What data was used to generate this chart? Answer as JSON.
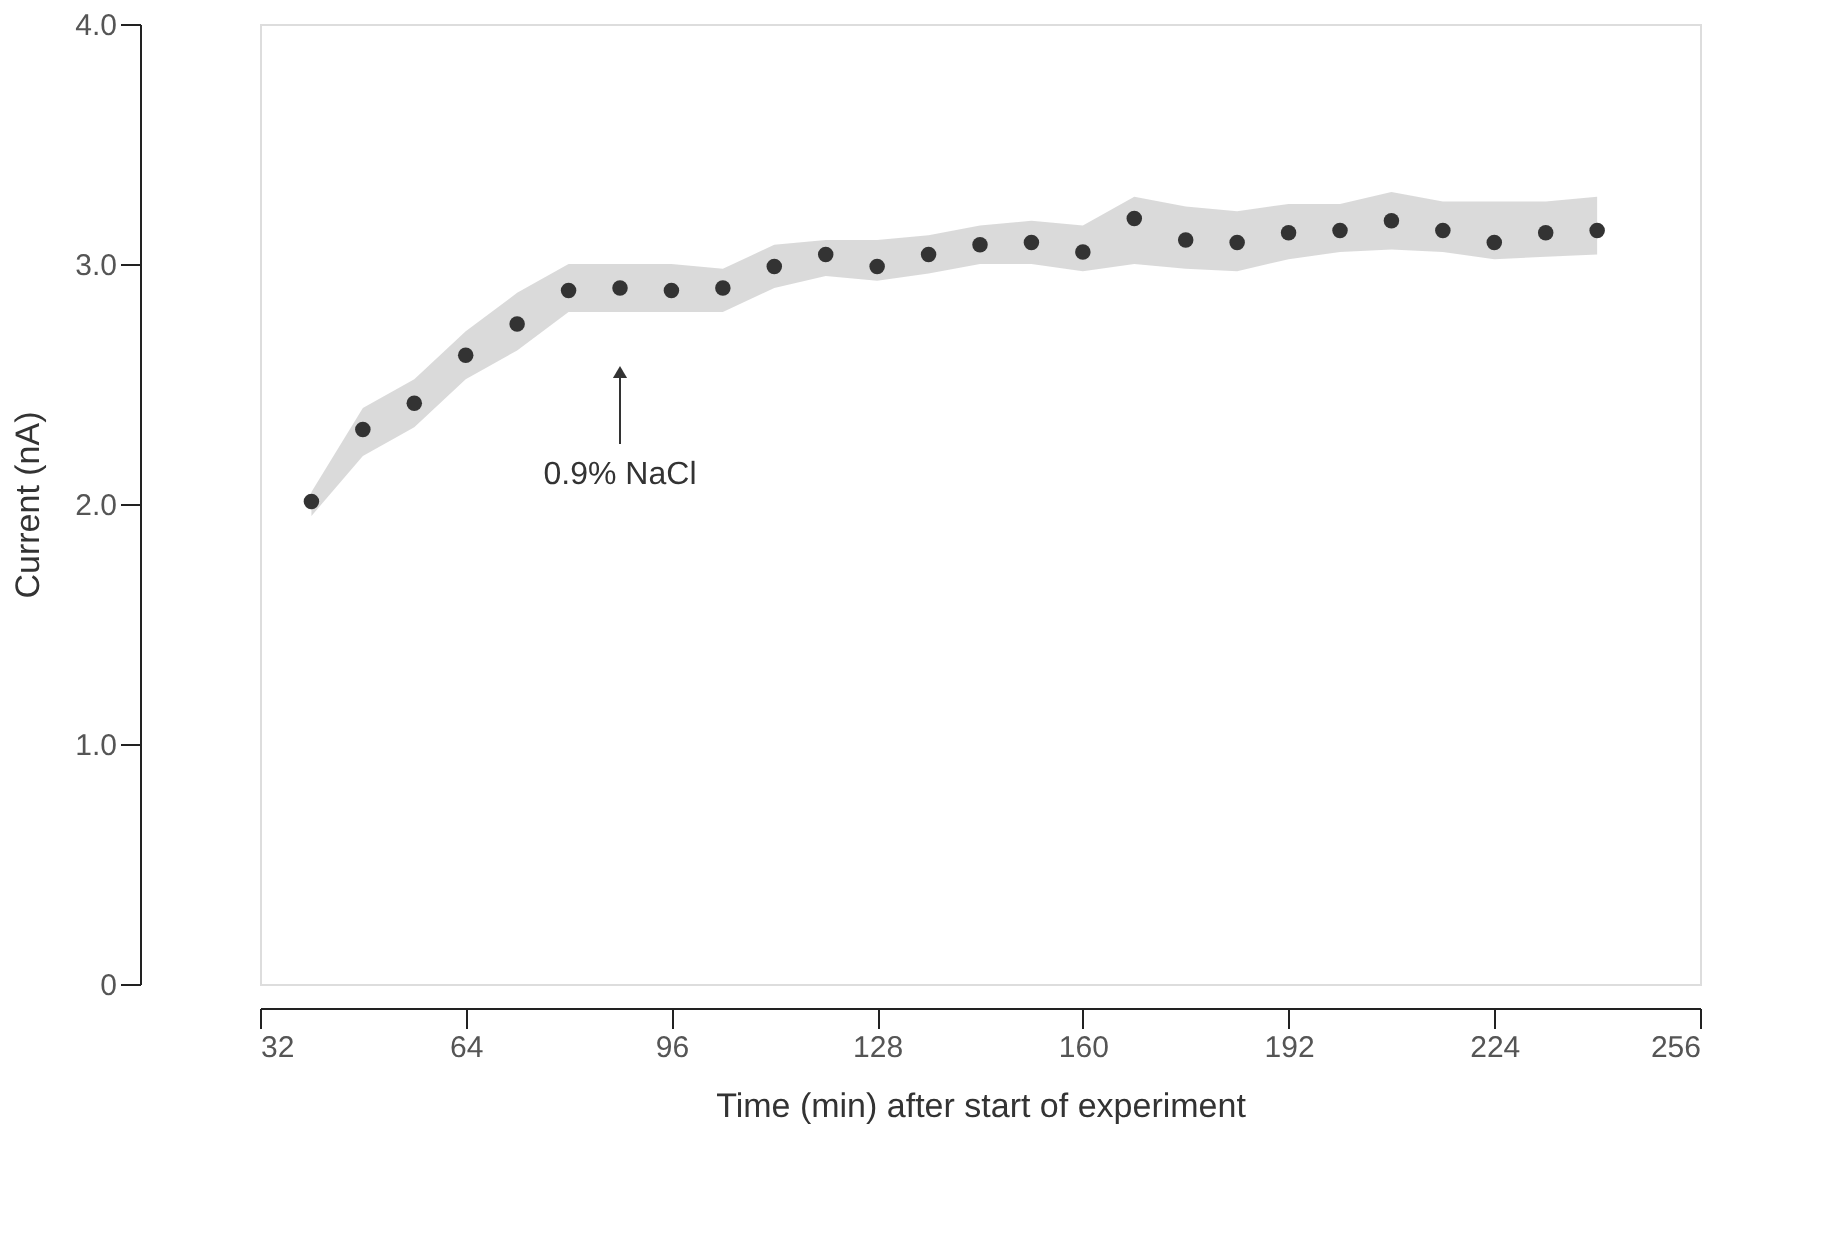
{
  "chart_data": {
    "type": "scatter",
    "xlabel": "Time (min) after start of experiment",
    "ylabel": "Current (nA)",
    "x": [
      40,
      48,
      56,
      64,
      72,
      80,
      88,
      96,
      104,
      112,
      120,
      128,
      136,
      144,
      152,
      160,
      168,
      176,
      184,
      192,
      200,
      208,
      216,
      224,
      232,
      240
    ],
    "series": [
      {
        "color": "#333333",
        "values": [
          2.01,
          2.31,
          2.42,
          2.62,
          2.75,
          2.89,
          2.9,
          2.89,
          2.9,
          2.99,
          3.04,
          2.99,
          3.04,
          3.08,
          3.09,
          3.05,
          3.19,
          3.1,
          3.09,
          3.13,
          3.14,
          3.18,
          3.14,
          3.09,
          3.13,
          3.14
        ],
        "lower": [
          1.95,
          2.2,
          2.32,
          2.52,
          2.64,
          2.8,
          2.8,
          2.8,
          2.8,
          2.9,
          2.95,
          2.93,
          2.96,
          3.0,
          3.0,
          2.97,
          3.0,
          2.98,
          2.97,
          3.02,
          3.05,
          3.06,
          3.05,
          3.02,
          3.03,
          3.04
        ],
        "upper": [
          2.05,
          2.4,
          2.52,
          2.72,
          2.88,
          3.0,
          3.0,
          3.0,
          2.98,
          3.08,
          3.1,
          3.1,
          3.12,
          3.16,
          3.18,
          3.16,
          3.28,
          3.24,
          3.22,
          3.25,
          3.25,
          3.3,
          3.26,
          3.26,
          3.26,
          3.28
        ]
      }
    ],
    "xlim": [
      32,
      256
    ],
    "xticks": [
      32,
      64,
      96,
      128,
      160,
      192,
      224,
      256
    ],
    "ylim": [
      0,
      4.0
    ],
    "yticks": [
      {
        "value": 0,
        "label": "0"
      },
      {
        "value": 1,
        "label": "1.0"
      },
      {
        "value": 2,
        "label": "2.0"
      },
      {
        "value": 3,
        "label": "3.0"
      },
      {
        "value": 4,
        "label": "4.0"
      }
    ],
    "marker": "circle",
    "grid": false,
    "annotations": [
      {
        "text": "0.9% NaCl",
        "x": 88,
        "y": 2.55
      }
    ]
  }
}
